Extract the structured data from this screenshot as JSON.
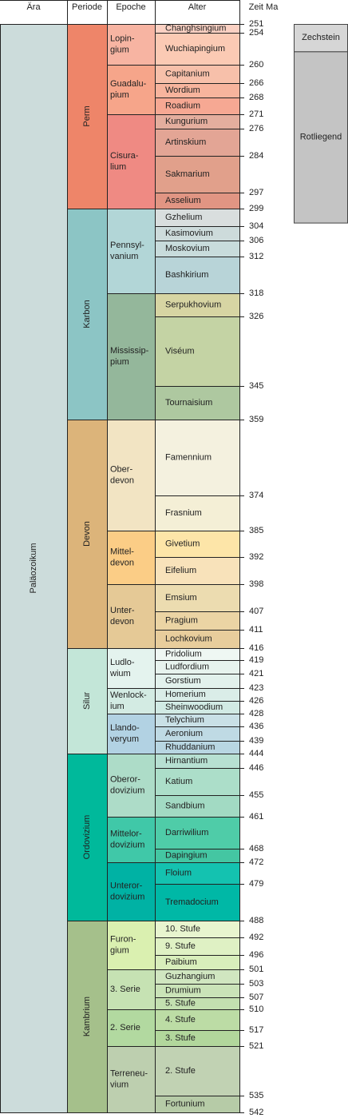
{
  "headers": {
    "era": "Ära",
    "period": "Periode",
    "epoch": "Epoche",
    "stage": "Alter",
    "age": "Zeit Ma"
  },
  "eras": [
    {
      "name": "Paläozoikum",
      "start": 251,
      "end": 542,
      "color": "#ccdcdb"
    }
  ],
  "periods": [
    {
      "name": "Perm",
      "start": 251,
      "end": 299,
      "color": "#ee8569"
    },
    {
      "name": "Karbon",
      "start": 299,
      "end": 359,
      "color": "#8cc5c5"
    },
    {
      "name": "Devon",
      "start": 359,
      "end": 416,
      "color": "#dcb47a"
    },
    {
      "name": "Silur",
      "start": 416,
      "end": 444,
      "color": "#c3e6d8"
    },
    {
      "name": "Ordovizium",
      "start": 444,
      "end": 488,
      "color": "#00b99b"
    },
    {
      "name": "Kambrium",
      "start": 488,
      "end": 542,
      "color": "#a5c08b"
    }
  ],
  "epochs": [
    {
      "name": "Lopin-\ngium",
      "start": 251,
      "end": 260,
      "color": "#f7b4a2"
    },
    {
      "name": "Guadalu-\npium",
      "start": 260,
      "end": 271,
      "color": "#f6a58a"
    },
    {
      "name": "Cisura-\nlium",
      "start": 271,
      "end": 299,
      "color": "#ef8a83"
    },
    {
      "name": "Pennsyl-\nvanium",
      "start": 299,
      "end": 318,
      "color": "#b2d6d7"
    },
    {
      "name": "Mississip-\npium",
      "start": 318,
      "end": 359,
      "color": "#94b79b"
    },
    {
      "name": "Ober-\ndevon",
      "start": 359,
      "end": 385,
      "color": "#f2e4c3"
    },
    {
      "name": "Mittel-\ndevon",
      "start": 385,
      "end": 398,
      "color": "#fbcd86"
    },
    {
      "name": "Unter-\ndevon",
      "start": 398,
      "end": 416,
      "color": "#e5c996"
    },
    {
      "name": "Ludlo-\nwium",
      "start": 416,
      "end": 423,
      "color": "#e4f3ee"
    },
    {
      "name": "Wenlock-\nium",
      "start": 423,
      "end": 428,
      "color": "#d3ebe3"
    },
    {
      "name": "Llando-\nveryum",
      "start": 428,
      "end": 444,
      "color": "#b2d2e3"
    },
    {
      "name": "Oberor-\ndovizium",
      "start": 444,
      "end": 461,
      "color": "#addcc8"
    },
    {
      "name": "Mittelor-\ndovizium",
      "start": 461,
      "end": 472,
      "color": "#40c8a8"
    },
    {
      "name": "Unteror-\ndovizium",
      "start": 472,
      "end": 488,
      "color": "#00b2a4"
    },
    {
      "name": "Furon-\ngium",
      "start": 488,
      "end": 501,
      "color": "#daf0b0"
    },
    {
      "name": "3. Serie",
      "start": 501,
      "end": 510,
      "color": "#c6e2b3"
    },
    {
      "name": "2. Serie",
      "start": 510,
      "end": 521,
      "color": "#b2d9a0"
    },
    {
      "name": "Terreneu-\nvium",
      "start": 521,
      "end": 542,
      "color": "#bdcfaf"
    }
  ],
  "stages": [
    {
      "name": "Changhsingium",
      "start": 251,
      "end": 254,
      "color": "#fbd1c3"
    },
    {
      "name": "Wuchiapingium",
      "start": 254,
      "end": 260,
      "color": "#fbcab4"
    },
    {
      "name": "Capitanium",
      "start": 260,
      "end": 266,
      "color": "#f7c0aa"
    },
    {
      "name": "Wordium",
      "start": 266,
      "end": 268,
      "color": "#f7b49d"
    },
    {
      "name": "Roadium",
      "start": 268,
      "end": 271,
      "color": "#f6a893"
    },
    {
      "name": "Kungurium",
      "start": 271,
      "end": 276,
      "color": "#e4ae9e"
    },
    {
      "name": "Artinskium",
      "start": 276,
      "end": 284,
      "color": "#e3a595"
    },
    {
      "name": "Sakmarium",
      "start": 284,
      "end": 297,
      "color": "#e1a08b"
    },
    {
      "name": "Asselium",
      "start": 297,
      "end": 299,
      "color": "#e19583"
    },
    {
      "name": "Gzhelium",
      "start": 299,
      "end": 304,
      "color": "#d9dede"
    },
    {
      "name": "Kasimovium",
      "start": 304,
      "end": 306,
      "color": "#cddbdb"
    },
    {
      "name": "Moskovium",
      "start": 306,
      "end": 312,
      "color": "#c8dcdc"
    },
    {
      "name": "Bashkirium",
      "start": 312,
      "end": 318,
      "color": "#b8d4d8"
    },
    {
      "name": "Serpukhovium",
      "start": 318,
      "end": 326,
      "color": "#d7d5a3"
    },
    {
      "name": "Viséum",
      "start": 326,
      "end": 345,
      "color": "#c4d3a4"
    },
    {
      "name": "Tournaisium",
      "start": 345,
      "end": 359,
      "color": "#aec8a0"
    },
    {
      "name": "Famennium",
      "start": 359,
      "end": 374,
      "color": "#f4f1df"
    },
    {
      "name": "Frasnium",
      "start": 374,
      "end": 385,
      "color": "#f4efd6"
    },
    {
      "name": "Givetium",
      "start": 385,
      "end": 392,
      "color": "#fde5a8"
    },
    {
      "name": "Eifelium",
      "start": 392,
      "end": 398,
      "color": "#f8e2ba"
    },
    {
      "name": "Emsium",
      "start": 398,
      "end": 407,
      "color": "#ecdcb0"
    },
    {
      "name": "Pragium",
      "start": 407,
      "end": 411,
      "color": "#ebd4a4"
    },
    {
      "name": "Lochkovium",
      "start": 411,
      "end": 416,
      "color": "#e8cd9c"
    },
    {
      "name": "Pridolium",
      "start": 416,
      "end": 419,
      "color": "#eff7f3"
    },
    {
      "name": "Ludfordium",
      "start": 419,
      "end": 421,
      "color": "#e7f3ee"
    },
    {
      "name": "Gorstium",
      "start": 421,
      "end": 423,
      "color": "#e2f1ec"
    },
    {
      "name": "Homerium",
      "start": 423,
      "end": 426,
      "color": "#daede8"
    },
    {
      "name": "Sheinwoodium",
      "start": 426,
      "end": 428,
      "color": "#d1eae4"
    },
    {
      "name": "Telychium",
      "start": 428,
      "end": 436,
      "color": "#c9e0e6"
    },
    {
      "name": "Aeronium",
      "start": 436,
      "end": 439,
      "color": "#bfdae4"
    },
    {
      "name": "Rhuddanium",
      "start": 439,
      "end": 444,
      "color": "#b8d6e2"
    },
    {
      "name": "Hirnantium",
      "start": 444,
      "end": 446,
      "color": "#b7e0d2"
    },
    {
      "name": "Katium",
      "start": 446,
      "end": 455,
      "color": "#acdec9"
    },
    {
      "name": "Sandbium",
      "start": 455,
      "end": 461,
      "color": "#a2dac3"
    },
    {
      "name": "Darriwilium",
      "start": 461,
      "end": 468,
      "color": "#4fcca8"
    },
    {
      "name": "Dapingium",
      "start": 468,
      "end": 472,
      "color": "#44c6a2"
    },
    {
      "name": "Floium",
      "start": 472,
      "end": 479,
      "color": "#14c2b0"
    },
    {
      "name": "Tremadocium",
      "start": 479,
      "end": 488,
      "color": "#00b8a6"
    },
    {
      "name": "10. Stufe",
      "start": 488,
      "end": 492,
      "color": "#e8f5cf"
    },
    {
      "name": "9. Stufe",
      "start": 492,
      "end": 496,
      "color": "#dff1c4"
    },
    {
      "name": "Paibium",
      "start": 496,
      "end": 501,
      "color": "#d8eebb"
    },
    {
      "name": "Guzhangium",
      "start": 501,
      "end": 503,
      "color": "#d0e6c0"
    },
    {
      "name": "Drumium",
      "start": 503,
      "end": 507,
      "color": "#cae3b8"
    },
    {
      "name": "5. Stufe",
      "start": 507,
      "end": 510,
      "color": "#c3e0b0"
    },
    {
      "name": "4. Stufe",
      "start": 510,
      "end": 517,
      "color": "#bcdca5"
    },
    {
      "name": "3. Stufe",
      "start": 517,
      "end": 521,
      "color": "#b2d79c"
    },
    {
      "name": "2. Stufe",
      "start": 521,
      "end": 535,
      "color": "#c1d2b3"
    },
    {
      "name": "Fortunium",
      "start": 535,
      "end": 542,
      "color": "#b6cba7"
    }
  ],
  "ages": [
    251,
    254,
    260,
    266,
    268,
    271,
    276,
    284,
    297,
    299,
    304,
    306,
    312,
    318,
    326,
    345,
    359,
    374,
    385,
    392,
    398,
    407,
    411,
    416,
    419,
    421,
    423,
    426,
    428,
    436,
    439,
    444,
    446,
    455,
    461,
    468,
    472,
    479,
    488,
    492,
    496,
    501,
    503,
    507,
    510,
    517,
    521,
    535,
    542
  ],
  "local_units": [
    {
      "name": "Zechstein",
      "start": 251,
      "end": 257.5,
      "color": "#d6d6d6"
    },
    {
      "name": "Rotliegend",
      "start": 257.5,
      "end": 303,
      "color": "#c4c4c4"
    }
  ]
}
